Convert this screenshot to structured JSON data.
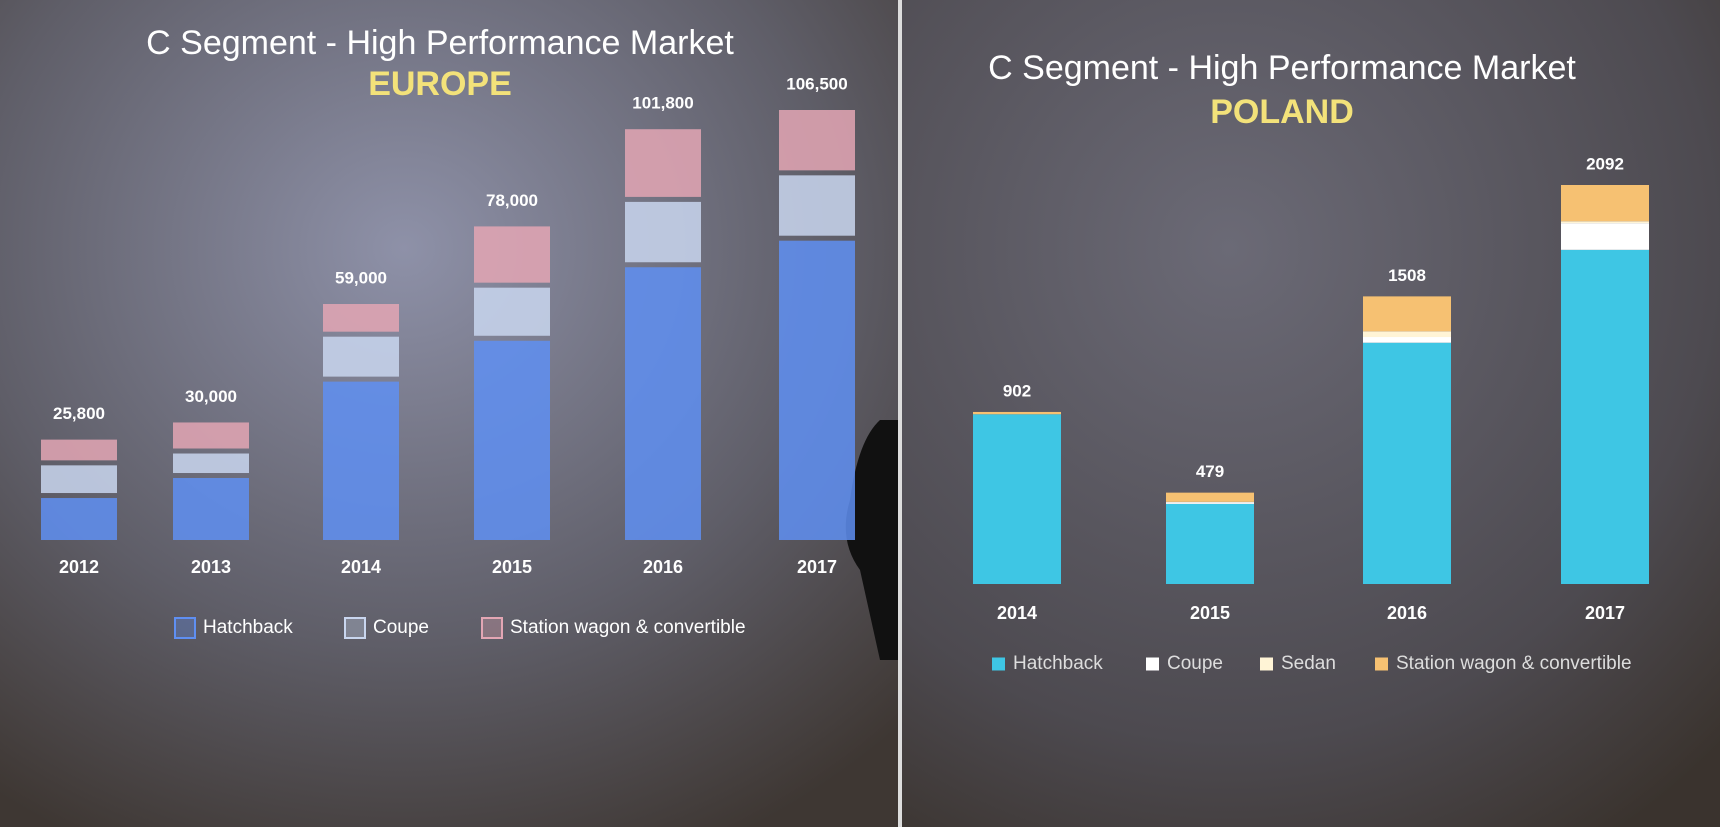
{
  "chart_data": [
    {
      "type": "bar",
      "stacked": true,
      "title": "C Segment - High Performance Market",
      "subtitle": "EUROPE",
      "categories": [
        "2012",
        "2013",
        "2014",
        "2015",
        "2016",
        "2017"
      ],
      "totals": [
        25800,
        30000,
        59000,
        78000,
        101800,
        106500
      ],
      "total_labels": [
        "25,800",
        "30,000",
        "59,000",
        "78,000",
        "101,800",
        "106,500"
      ],
      "series": [
        {
          "name": "Hatchback",
          "color": "#5f8ff2",
          "values": [
            11500,
            16400,
            40000,
            50000,
            68000,
            74500
          ]
        },
        {
          "name": "Coupe",
          "color": "#c9d6ef",
          "values": [
            8000,
            6000,
            11000,
            13000,
            16000,
            16000
          ]
        },
        {
          "name": "Station wagon & convertible",
          "color": "#e3a6b4",
          "values": [
            6300,
            7600,
            8000,
            15000,
            17800,
            16000
          ]
        }
      ]
    },
    {
      "type": "bar",
      "stacked": true,
      "title": "C Segment - High Performance Market",
      "subtitle": "POLAND",
      "categories": [
        "2014",
        "2015",
        "2016",
        "2017"
      ],
      "totals": [
        902,
        479,
        1508,
        2092
      ],
      "series": [
        {
          "name": "Hatchback",
          "color": "#3ec6e4",
          "values": [
            890,
            420,
            1265,
            1752
          ]
        },
        {
          "name": "Coupe",
          "color": "#ffffff",
          "values": [
            0,
            9,
            30,
            140
          ]
        },
        {
          "name": "Sedan",
          "color": "#fff4d6",
          "values": [
            0,
            2,
            30,
            10
          ]
        },
        {
          "name": "Station wagon & convertible",
          "color": "#f6c172",
          "values": [
            12,
            48,
            183,
            190
          ]
        }
      ]
    }
  ]
}
